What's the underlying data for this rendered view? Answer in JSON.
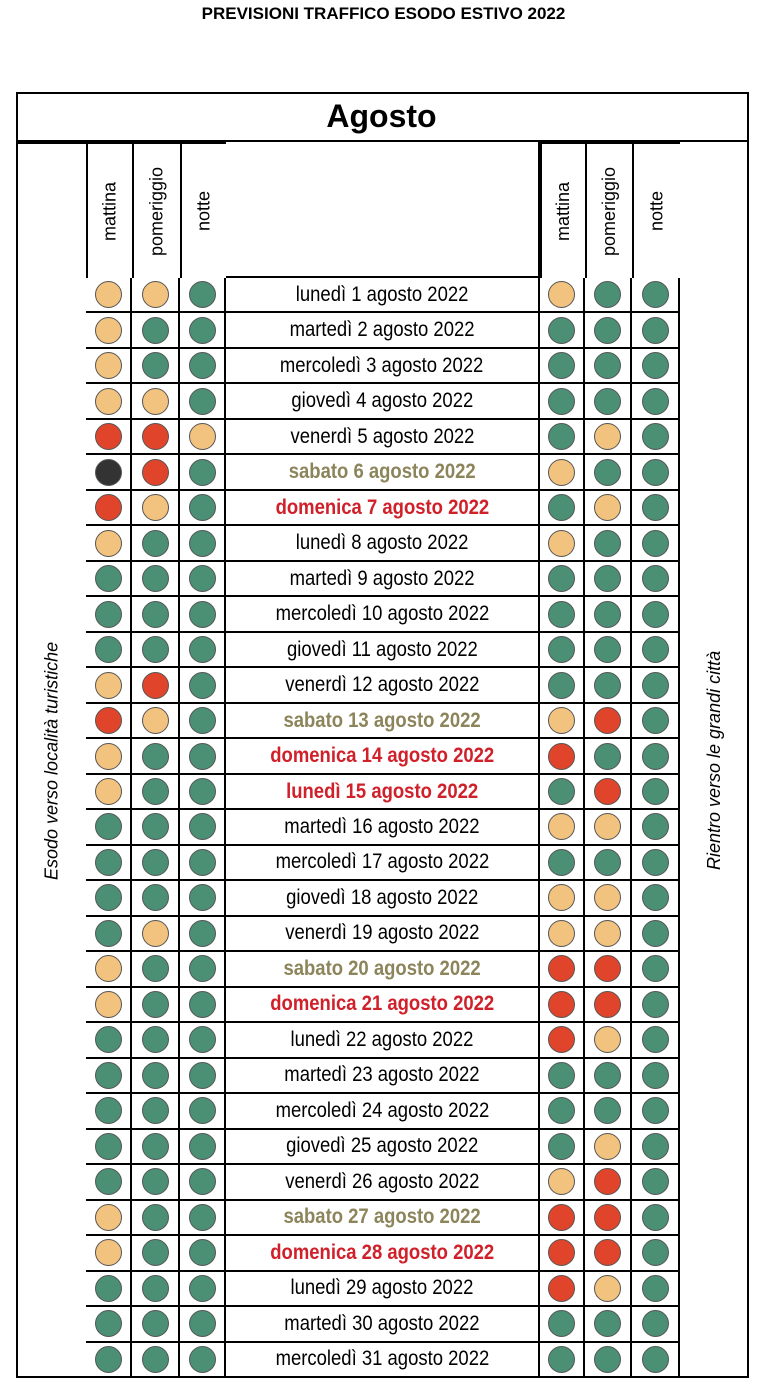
{
  "header": {
    "title": "PREVISIONI TRAFFICO ESODO ESTIVO 2022"
  },
  "table": {
    "month": "Agosto",
    "left_label": "Esodo verso località turistiche",
    "right_label": "Rientro verso le grandi città",
    "columns": [
      "mattina",
      "pomeriggio",
      "notte"
    ],
    "rows": [
      {
        "date": "lunedì 1 agosto 2022",
        "color": "#000000",
        "bold": false,
        "out": [
          "#f2c27f",
          "#f2c27f",
          "#4b8f74"
        ],
        "ret": [
          "#f2c27f",
          "#4b8f74",
          "#4b8f74"
        ]
      },
      {
        "date": "martedì 2 agosto 2022",
        "color": "#000000",
        "bold": false,
        "out": [
          "#f2c27f",
          "#4b8f74",
          "#4b8f74"
        ],
        "ret": [
          "#4b8f74",
          "#4b8f74",
          "#4b8f74"
        ]
      },
      {
        "date": "mercoledì 3 agosto 2022",
        "color": "#000000",
        "bold": false,
        "out": [
          "#f2c27f",
          "#4b8f74",
          "#4b8f74"
        ],
        "ret": [
          "#4b8f74",
          "#4b8f74",
          "#4b8f74"
        ]
      },
      {
        "date": "giovedì 4 agosto 2022",
        "color": "#000000",
        "bold": false,
        "out": [
          "#f2c27f",
          "#f2c27f",
          "#4b8f74"
        ],
        "ret": [
          "#4b8f74",
          "#4b8f74",
          "#4b8f74"
        ]
      },
      {
        "date": "venerdì 5 agosto 2022",
        "color": "#000000",
        "bold": false,
        "out": [
          "#e0452b",
          "#e0452b",
          "#f2c27f"
        ],
        "ret": [
          "#4b8f74",
          "#f2c27f",
          "#4b8f74"
        ]
      },
      {
        "date": "sabato 6 agosto 2022",
        "color": "#8c845a",
        "bold": true,
        "out": [
          "#333333",
          "#e0452b",
          "#4b8f74"
        ],
        "ret": [
          "#f2c27f",
          "#4b8f74",
          "#4b8f74"
        ]
      },
      {
        "date": "domenica 7 agosto 2022",
        "color": "#d0202a",
        "bold": true,
        "out": [
          "#e0452b",
          "#f2c27f",
          "#4b8f74"
        ],
        "ret": [
          "#4b8f74",
          "#f2c27f",
          "#4b8f74"
        ]
      },
      {
        "date": "lunedì 8 agosto 2022",
        "color": "#000000",
        "bold": false,
        "out": [
          "#f2c27f",
          "#4b8f74",
          "#4b8f74"
        ],
        "ret": [
          "#f2c27f",
          "#4b8f74",
          "#4b8f74"
        ]
      },
      {
        "date": "martedì 9 agosto 2022",
        "color": "#000000",
        "bold": false,
        "out": [
          "#4b8f74",
          "#4b8f74",
          "#4b8f74"
        ],
        "ret": [
          "#4b8f74",
          "#4b8f74",
          "#4b8f74"
        ]
      },
      {
        "date": "mercoledì 10 agosto 2022",
        "color": "#000000",
        "bold": false,
        "out": [
          "#4b8f74",
          "#4b8f74",
          "#4b8f74"
        ],
        "ret": [
          "#4b8f74",
          "#4b8f74",
          "#4b8f74"
        ]
      },
      {
        "date": "giovedì 11 agosto 2022",
        "color": "#000000",
        "bold": false,
        "out": [
          "#4b8f74",
          "#4b8f74",
          "#4b8f74"
        ],
        "ret": [
          "#4b8f74",
          "#4b8f74",
          "#4b8f74"
        ]
      },
      {
        "date": "venerdì 12 agosto 2022",
        "color": "#000000",
        "bold": false,
        "out": [
          "#f2c27f",
          "#e0452b",
          "#4b8f74"
        ],
        "ret": [
          "#4b8f74",
          "#4b8f74",
          "#4b8f74"
        ]
      },
      {
        "date": "sabato 13 agosto 2022",
        "color": "#8c845a",
        "bold": true,
        "out": [
          "#e0452b",
          "#f2c27f",
          "#4b8f74"
        ],
        "ret": [
          "#f2c27f",
          "#e0452b",
          "#4b8f74"
        ]
      },
      {
        "date": "domenica 14 agosto 2022",
        "color": "#d0202a",
        "bold": true,
        "out": [
          "#f2c27f",
          "#4b8f74",
          "#4b8f74"
        ],
        "ret": [
          "#e0452b",
          "#4b8f74",
          "#4b8f74"
        ]
      },
      {
        "date": "lunedì 15 agosto 2022",
        "color": "#d0202a",
        "bold": true,
        "out": [
          "#f2c27f",
          "#4b8f74",
          "#4b8f74"
        ],
        "ret": [
          "#4b8f74",
          "#e0452b",
          "#4b8f74"
        ]
      },
      {
        "date": "martedì 16 agosto 2022",
        "color": "#000000",
        "bold": false,
        "out": [
          "#4b8f74",
          "#4b8f74",
          "#4b8f74"
        ],
        "ret": [
          "#f2c27f",
          "#f2c27f",
          "#4b8f74"
        ]
      },
      {
        "date": "mercoledì 17 agosto 2022",
        "color": "#000000",
        "bold": false,
        "out": [
          "#4b8f74",
          "#4b8f74",
          "#4b8f74"
        ],
        "ret": [
          "#4b8f74",
          "#4b8f74",
          "#4b8f74"
        ]
      },
      {
        "date": "giovedì 18 agosto 2022",
        "color": "#000000",
        "bold": false,
        "out": [
          "#4b8f74",
          "#4b8f74",
          "#4b8f74"
        ],
        "ret": [
          "#f2c27f",
          "#f2c27f",
          "#4b8f74"
        ]
      },
      {
        "date": "venerdì 19 agosto 2022",
        "color": "#000000",
        "bold": false,
        "out": [
          "#4b8f74",
          "#f2c27f",
          "#4b8f74"
        ],
        "ret": [
          "#f2c27f",
          "#f2c27f",
          "#4b8f74"
        ]
      },
      {
        "date": "sabato 20 agosto 2022",
        "color": "#8c845a",
        "bold": true,
        "out": [
          "#f2c27f",
          "#4b8f74",
          "#4b8f74"
        ],
        "ret": [
          "#e0452b",
          "#e0452b",
          "#4b8f74"
        ]
      },
      {
        "date": "domenica 21 agosto 2022",
        "color": "#d0202a",
        "bold": true,
        "out": [
          "#f2c27f",
          "#4b8f74",
          "#4b8f74"
        ],
        "ret": [
          "#e0452b",
          "#e0452b",
          "#4b8f74"
        ]
      },
      {
        "date": "lunedì 22 agosto 2022",
        "color": "#000000",
        "bold": false,
        "out": [
          "#4b8f74",
          "#4b8f74",
          "#4b8f74"
        ],
        "ret": [
          "#e0452b",
          "#f2c27f",
          "#4b8f74"
        ]
      },
      {
        "date": "martedì 23 agosto 2022",
        "color": "#000000",
        "bold": false,
        "out": [
          "#4b8f74",
          "#4b8f74",
          "#4b8f74"
        ],
        "ret": [
          "#4b8f74",
          "#4b8f74",
          "#4b8f74"
        ]
      },
      {
        "date": "mercoledì 24 agosto 2022",
        "color": "#000000",
        "bold": false,
        "out": [
          "#4b8f74",
          "#4b8f74",
          "#4b8f74"
        ],
        "ret": [
          "#4b8f74",
          "#4b8f74",
          "#4b8f74"
        ]
      },
      {
        "date": "giovedì 25 agosto 2022",
        "color": "#000000",
        "bold": false,
        "out": [
          "#4b8f74",
          "#4b8f74",
          "#4b8f74"
        ],
        "ret": [
          "#4b8f74",
          "#f2c27f",
          "#4b8f74"
        ]
      },
      {
        "date": "venerdì 26 agosto 2022",
        "color": "#000000",
        "bold": false,
        "out": [
          "#4b8f74",
          "#4b8f74",
          "#4b8f74"
        ],
        "ret": [
          "#f2c27f",
          "#e0452b",
          "#4b8f74"
        ]
      },
      {
        "date": "sabato 27 agosto 2022",
        "color": "#8c845a",
        "bold": true,
        "out": [
          "#f2c27f",
          "#4b8f74",
          "#4b8f74"
        ],
        "ret": [
          "#e0452b",
          "#e0452b",
          "#4b8f74"
        ]
      },
      {
        "date": "domenica 28 agosto 2022",
        "color": "#d0202a",
        "bold": true,
        "out": [
          "#f2c27f",
          "#4b8f74",
          "#4b8f74"
        ],
        "ret": [
          "#e0452b",
          "#e0452b",
          "#4b8f74"
        ]
      },
      {
        "date": "lunedì 29 agosto 2022",
        "color": "#000000",
        "bold": false,
        "out": [
          "#4b8f74",
          "#4b8f74",
          "#4b8f74"
        ],
        "ret": [
          "#e0452b",
          "#f2c27f",
          "#4b8f74"
        ]
      },
      {
        "date": "martedì 30 agosto 2022",
        "color": "#000000",
        "bold": false,
        "out": [
          "#4b8f74",
          "#4b8f74",
          "#4b8f74"
        ],
        "ret": [
          "#4b8f74",
          "#4b8f74",
          "#4b8f74"
        ]
      },
      {
        "date": "mercoledì 31 agosto 2022",
        "color": "#000000",
        "bold": false,
        "out": [
          "#4b8f74",
          "#4b8f74",
          "#4b8f74"
        ],
        "ret": [
          "#4b8f74",
          "#4b8f74",
          "#4b8f74"
        ]
      }
    ]
  }
}
